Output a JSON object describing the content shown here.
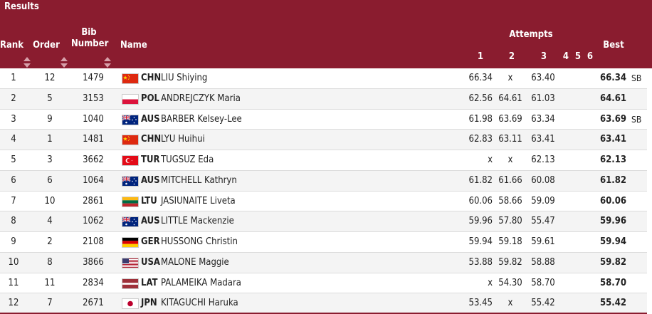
{
  "section": {
    "title": "Results"
  },
  "columns": {
    "rank": "Rank",
    "order": "Order",
    "bib_line1": "Bib",
    "bib_line2": "Number",
    "name": "Name",
    "attempts": "Attempts",
    "a1": "1",
    "a2": "2",
    "a3": "3",
    "a4": "4",
    "a5": "5",
    "a6": "6",
    "best": "Best"
  },
  "rows": [
    {
      "rank": "1",
      "order": "12",
      "bib": "1479",
      "flag": "CHN",
      "noc": "CHN",
      "name": "LIU Shiying",
      "a1": "66.34",
      "a2": "x",
      "a3": "63.40",
      "best": "66.34",
      "rec": "SB"
    },
    {
      "rank": "2",
      "order": "5",
      "bib": "3153",
      "flag": "POL",
      "noc": "POL",
      "name": "ANDREJCZYK Maria",
      "a1": "62.56",
      "a2": "64.61",
      "a3": "61.03",
      "best": "64.61",
      "rec": ""
    },
    {
      "rank": "3",
      "order": "9",
      "bib": "1040",
      "flag": "AUS",
      "noc": "AUS",
      "name": "BARBER Kelsey-Lee",
      "a1": "61.98",
      "a2": "63.69",
      "a3": "63.34",
      "best": "63.69",
      "rec": "SB"
    },
    {
      "rank": "4",
      "order": "1",
      "bib": "1481",
      "flag": "CHN",
      "noc": "CHN",
      "name": "LYU Huihui",
      "a1": "62.83",
      "a2": "63.11",
      "a3": "63.41",
      "best": "63.41",
      "rec": ""
    },
    {
      "rank": "5",
      "order": "3",
      "bib": "3662",
      "flag": "TUR",
      "noc": "TUR",
      "name": "TUGSUZ Eda",
      "a1": "x",
      "a2": "x",
      "a3": "62.13",
      "best": "62.13",
      "rec": ""
    },
    {
      "rank": "6",
      "order": "6",
      "bib": "1064",
      "flag": "AUS",
      "noc": "AUS",
      "name": "MITCHELL Kathryn",
      "a1": "61.82",
      "a2": "61.66",
      "a3": "60.08",
      "best": "61.82",
      "rec": ""
    },
    {
      "rank": "7",
      "order": "10",
      "bib": "2861",
      "flag": "LTU",
      "noc": "LTU",
      "name": "JASIUNAITE Liveta",
      "a1": "60.06",
      "a2": "58.66",
      "a3": "59.09",
      "best": "60.06",
      "rec": ""
    },
    {
      "rank": "8",
      "order": "4",
      "bib": "1062",
      "flag": "AUS",
      "noc": "AUS",
      "name": "LITTLE Mackenzie",
      "a1": "59.96",
      "a2": "57.80",
      "a3": "55.47",
      "best": "59.96",
      "rec": ""
    },
    {
      "rank": "9",
      "order": "2",
      "bib": "2108",
      "flag": "GER",
      "noc": "GER",
      "name": "HUSSONG Christin",
      "a1": "59.94",
      "a2": "59.18",
      "a3": "59.61",
      "best": "59.94",
      "rec": ""
    },
    {
      "rank": "10",
      "order": "8",
      "bib": "3866",
      "flag": "USA",
      "noc": "USA",
      "name": "MALONE Maggie",
      "a1": "53.88",
      "a2": "59.82",
      "a3": "58.88",
      "best": "59.82",
      "rec": ""
    },
    {
      "rank": "11",
      "order": "11",
      "bib": "2834",
      "flag": "LAT",
      "noc": "LAT",
      "name": "PALAMEIKA Madara",
      "a1": "x",
      "a2": "54.30",
      "a3": "58.70",
      "best": "58.70",
      "rec": ""
    },
    {
      "rank": "12",
      "order": "7",
      "bib": "2671",
      "flag": "JPN",
      "noc": "JPN",
      "name": "KITAGUCHI Haruka",
      "a1": "53.45",
      "a2": "x",
      "a3": "55.42",
      "best": "55.42",
      "rec": ""
    }
  ],
  "colors": {
    "header_bg": "#8a1c2f",
    "header_text": "#ffffff",
    "row_alt": "#f4f4f4"
  }
}
